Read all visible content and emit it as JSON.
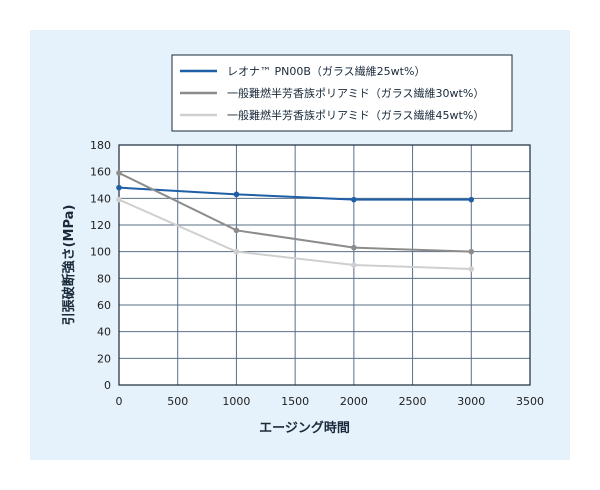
{
  "chart_data": {
    "type": "line",
    "title": "",
    "xlabel": "エージング時間",
    "ylabel": "引張破断強さ(MPa)",
    "xlim": [
      0,
      3500
    ],
    "ylim": [
      0,
      180
    ],
    "xticks": [
      0,
      500,
      1000,
      1500,
      2000,
      2500,
      3000,
      3500
    ],
    "yticks": [
      0,
      20,
      40,
      60,
      80,
      100,
      120,
      140,
      160,
      180
    ],
    "grid": true,
    "legend_position": "top",
    "series": [
      {
        "name": "レオナ™ PN00B（ガラス繊維25wt%）",
        "color": "#1f5fa6",
        "x": [
          0,
          1000,
          2000,
          3000
        ],
        "y": [
          148,
          143,
          139,
          139
        ],
        "markers": true
      },
      {
        "name": "一般難燃半芳香族ポリアミド（ガラス繊維30wt%）",
        "color": "#8c8c8c",
        "x": [
          0,
          1000,
          2000,
          3000
        ],
        "y": [
          159,
          116,
          103,
          100
        ],
        "markers": true
      },
      {
        "name": "一般難燃半芳香族ポリアミド（ガラス繊維45wt%）",
        "color": "#cfcfcf",
        "x": [
          0,
          1000,
          2000,
          3000
        ],
        "y": [
          139,
          100,
          90,
          87
        ],
        "markers": true
      }
    ]
  }
}
